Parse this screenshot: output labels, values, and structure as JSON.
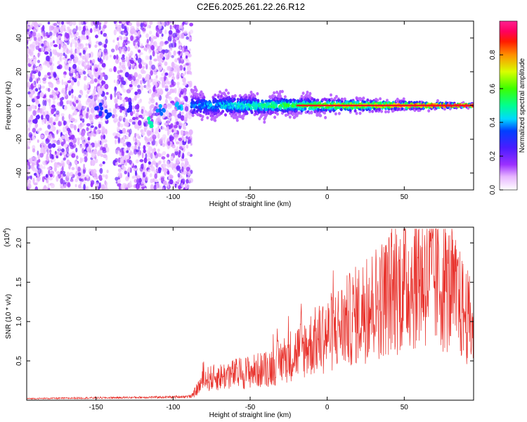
{
  "title": "C2E6.2025.261.22.26.R12",
  "colors": {
    "snr_line": "#e8312b",
    "axis": "#000000",
    "background": "#ffffff"
  },
  "chart_data": [
    {
      "type": "heatmap",
      "name": "spectrogram",
      "xlabel": "Height of straight line (km)",
      "ylabel": "Frequency (Hz)",
      "xlim": [
        -195,
        95
      ],
      "ylim": [
        -50,
        50
      ],
      "x_ticks": [
        -150,
        -100,
        -50,
        0,
        50
      ],
      "y_ticks": [
        -40,
        -20,
        0,
        20,
        40
      ],
      "colorbar": {
        "label": "Normalized spectral amplitude",
        "range": [
          0.0,
          1.0
        ],
        "ticks": [
          0.0,
          0.2,
          0.4,
          0.6,
          0.8
        ],
        "tick_labels": [
          "0.0",
          "0.2",
          "0.4",
          "0.6",
          "0.8"
        ]
      },
      "regions": [
        {
          "description": "noise, broadband scatter",
          "x_range": [
            -195,
            -88
          ],
          "freq_range": [
            -50,
            50
          ],
          "amplitude": 0.1
        },
        {
          "description": "signal band",
          "x_range": [
            -88,
            95
          ],
          "freq_center": 0,
          "amplitude_start": 0.35,
          "amplitude_end": 0.95
        }
      ]
    },
    {
      "type": "line",
      "name": "snr",
      "xlabel": "Height of straight line (km)",
      "ylabel": "SNR (10 * v/v)",
      "y_multiplier": "(x10^4)",
      "xlim": [
        -195,
        95
      ],
      "ylim": [
        0,
        2.2
      ],
      "x_ticks": [
        -150,
        -100,
        -50,
        0,
        50
      ],
      "y_ticks": [
        0.5,
        1.0,
        1.5,
        2.0
      ],
      "y_tick_labels": [
        "0.5",
        "1.0",
        "1.5",
        "2.0"
      ],
      "envelope": {
        "x": [
          -195,
          -100,
          -88,
          -80,
          -60,
          -40,
          -20,
          0,
          20,
          40,
          50,
          60,
          70,
          80,
          95
        ],
        "y": [
          0.02,
          0.04,
          0.05,
          0.3,
          0.38,
          0.45,
          0.7,
          0.95,
          1.25,
          1.55,
          1.7,
          1.8,
          1.75,
          1.6,
          1.05
        ]
      }
    }
  ],
  "axes_text": {
    "top": {
      "x_tick_labels": [
        "-150",
        "-100",
        "-50",
        "0",
        "50"
      ],
      "y_tick_labels": [
        "-40",
        "-20",
        "0",
        "20",
        "40"
      ],
      "xlabel": "Height of straight line (km)",
      "ylabel": "Frequency (Hz)"
    },
    "bottom": {
      "x_tick_labels": [
        "-150",
        "-100",
        "-50",
        "0",
        "50"
      ],
      "y_tick_labels": [
        "0.5",
        "1.0",
        "1.5",
        "2.0"
      ],
      "xlabel": "Height of straight line (km)",
      "ylabel": "SNR (10 * v/v)",
      "multiplier": "(x10",
      "multiplier_exp": "4",
      "multiplier_close": ")"
    }
  }
}
